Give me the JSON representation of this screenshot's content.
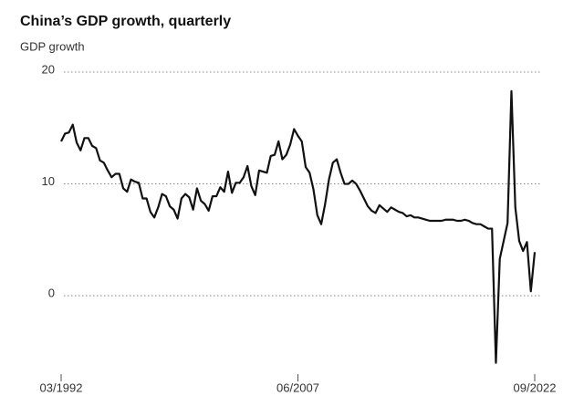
{
  "chart_data": {
    "type": "line",
    "title": "China’s GDP growth, quarterly",
    "y_label": "GDP growth",
    "categories": [
      "03/1992",
      null,
      null,
      null,
      null,
      null,
      null,
      null,
      null,
      null,
      null,
      null,
      null,
      null,
      null,
      null,
      null,
      null,
      null,
      null,
      null,
      null,
      null,
      null,
      null,
      null,
      null,
      null,
      null,
      null,
      null,
      null,
      null,
      null,
      null,
      null,
      null,
      null,
      null,
      null,
      null,
      null,
      null,
      null,
      null,
      null,
      null,
      null,
      null,
      null,
      null,
      null,
      null,
      null,
      null,
      null,
      null,
      null,
      null,
      null,
      null,
      "06/2007",
      null,
      null,
      null,
      null,
      null,
      null,
      null,
      null,
      null,
      null,
      null,
      null,
      null,
      null,
      null,
      null,
      null,
      null,
      null,
      null,
      null,
      null,
      null,
      null,
      null,
      null,
      null,
      null,
      null,
      null,
      null,
      null,
      null,
      null,
      null,
      null,
      null,
      null,
      null,
      null,
      null,
      null,
      null,
      null,
      null,
      null,
      null,
      null,
      null,
      null,
      null,
      null,
      null,
      null,
      null,
      null,
      null,
      null,
      null,
      null,
      "09/2022"
    ],
    "series": [
      {
        "name": "GDP growth",
        "color": "#111111",
        "values": [
          13.8,
          14.5,
          14.6,
          15.3,
          13.7,
          13.0,
          14.1,
          14.1,
          13.4,
          13.2,
          12.1,
          11.9,
          11.2,
          10.6,
          10.9,
          10.9,
          9.6,
          9.3,
          10.4,
          10.2,
          10.1,
          8.7,
          8.7,
          7.5,
          7.0,
          7.9,
          9.1,
          8.9,
          8.0,
          7.7,
          6.9,
          8.7,
          9.1,
          8.8,
          7.7,
          9.6,
          8.5,
          8.2,
          7.6,
          8.9,
          8.9,
          9.7,
          9.3,
          11.1,
          9.2,
          10.1,
          10.1,
          10.6,
          11.6,
          9.8,
          9.0,
          11.2,
          11.1,
          11.0,
          12.5,
          12.6,
          13.8,
          12.2,
          12.6,
          13.5,
          14.9,
          14.3,
          13.8,
          11.5,
          11.0,
          9.5,
          7.2,
          6.4,
          8.2,
          10.4,
          11.9,
          12.2,
          11.0,
          10.0,
          10.0,
          10.3,
          10.0,
          9.4,
          8.7,
          8.0,
          7.6,
          7.4,
          8.1,
          7.8,
          7.5,
          7.9,
          7.7,
          7.5,
          7.4,
          7.1,
          7.2,
          7.0,
          7.0,
          6.9,
          6.8,
          6.7,
          6.7,
          6.7,
          6.7,
          6.8,
          6.8,
          6.8,
          6.7,
          6.7,
          6.8,
          6.7,
          6.5,
          6.4,
          6.4,
          6.2,
          6.0,
          6.0,
          -6.0,
          3.3,
          4.9,
          6.5,
          18.3,
          7.9,
          4.9,
          4.0,
          4.8,
          0.4,
          3.9
        ]
      }
    ],
    "ylim": [
      -6.6,
      20
    ],
    "yticks": [
      0,
      10,
      20
    ],
    "grid": true
  }
}
